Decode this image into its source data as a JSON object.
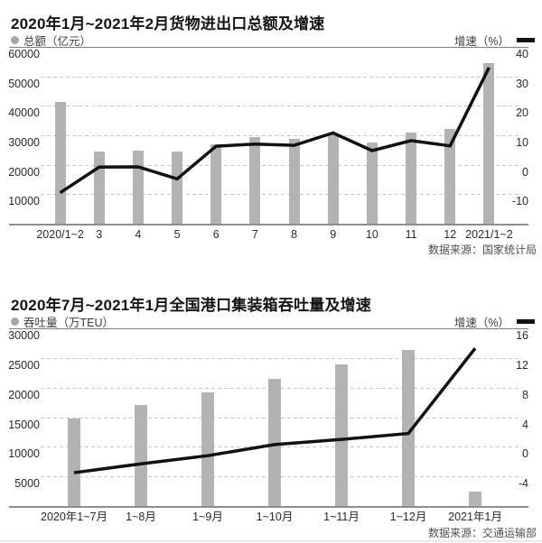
{
  "chart_data": [
    {
      "type": "bar+line",
      "title": "2020年1月~2021年2月货物进出口总额及增速",
      "source": "数据来源：国家统计局",
      "categories": [
        "2020/1~2",
        "3",
        "4",
        "5",
        "6",
        "7",
        "8",
        "9",
        "10",
        "11",
        "12",
        "2021/1~2"
      ],
      "series": [
        {
          "name": "总额（亿元）",
          "type": "bar",
          "axis": "left",
          "values": [
            41200,
            24400,
            24900,
            24600,
            26900,
            29300,
            28800,
            30700,
            27700,
            30900,
            32000,
            54400
          ]
        },
        {
          "name": "增速（%）",
          "type": "line",
          "axis": "right",
          "values": [
            -9.5,
            -0.8,
            -0.7,
            -4.8,
            6.3,
            7.0,
            6.6,
            10.8,
            4.8,
            8.2,
            6.4,
            33
          ]
        }
      ],
      "axis_left": {
        "min": 0,
        "max": 60000,
        "ticks": [
          60000,
          50000,
          40000,
          30000,
          20000,
          10000
        ]
      },
      "axis_right": {
        "min": -20,
        "max": 40,
        "ticks": [
          40,
          30,
          20,
          10,
          0,
          -10
        ]
      },
      "grid": "dashed-horizontal",
      "legend_position": "top",
      "colors": {
        "bar": "#b3b3b3",
        "line": "#111111"
      }
    },
    {
      "type": "bar+line",
      "title": "2020年7月~2021年1月全国港口集装箱吞吐量及增速",
      "source": "数据来源：交通运输部",
      "categories": [
        "2020年1~7月",
        "1~8月",
        "1~9月",
        "1~10月",
        "1~11月",
        "1~12月",
        "2021年1月"
      ],
      "series": [
        {
          "name": "吞吐量（万TEU）",
          "type": "bar",
          "axis": "left",
          "values": [
            14700,
            17100,
            19200,
            21400,
            23900,
            26400,
            2400
          ]
        },
        {
          "name": "增速（%）",
          "type": "line",
          "axis": "right",
          "values": [
            -3.5,
            -2.3,
            -1.2,
            0.3,
            1.0,
            1.8,
            13.3
          ]
        }
      ],
      "axis_left": {
        "min": 0,
        "max": 30000,
        "ticks": [
          30000,
          25000,
          20000,
          15000,
          10000,
          5000
        ]
      },
      "axis_right": {
        "min": -8,
        "max": 16,
        "ticks": [
          16,
          12,
          8,
          4,
          0,
          -4
        ]
      },
      "grid": "dashed-horizontal",
      "legend_position": "top",
      "colors": {
        "bar": "#b3b3b3",
        "line": "#111111"
      }
    }
  ]
}
